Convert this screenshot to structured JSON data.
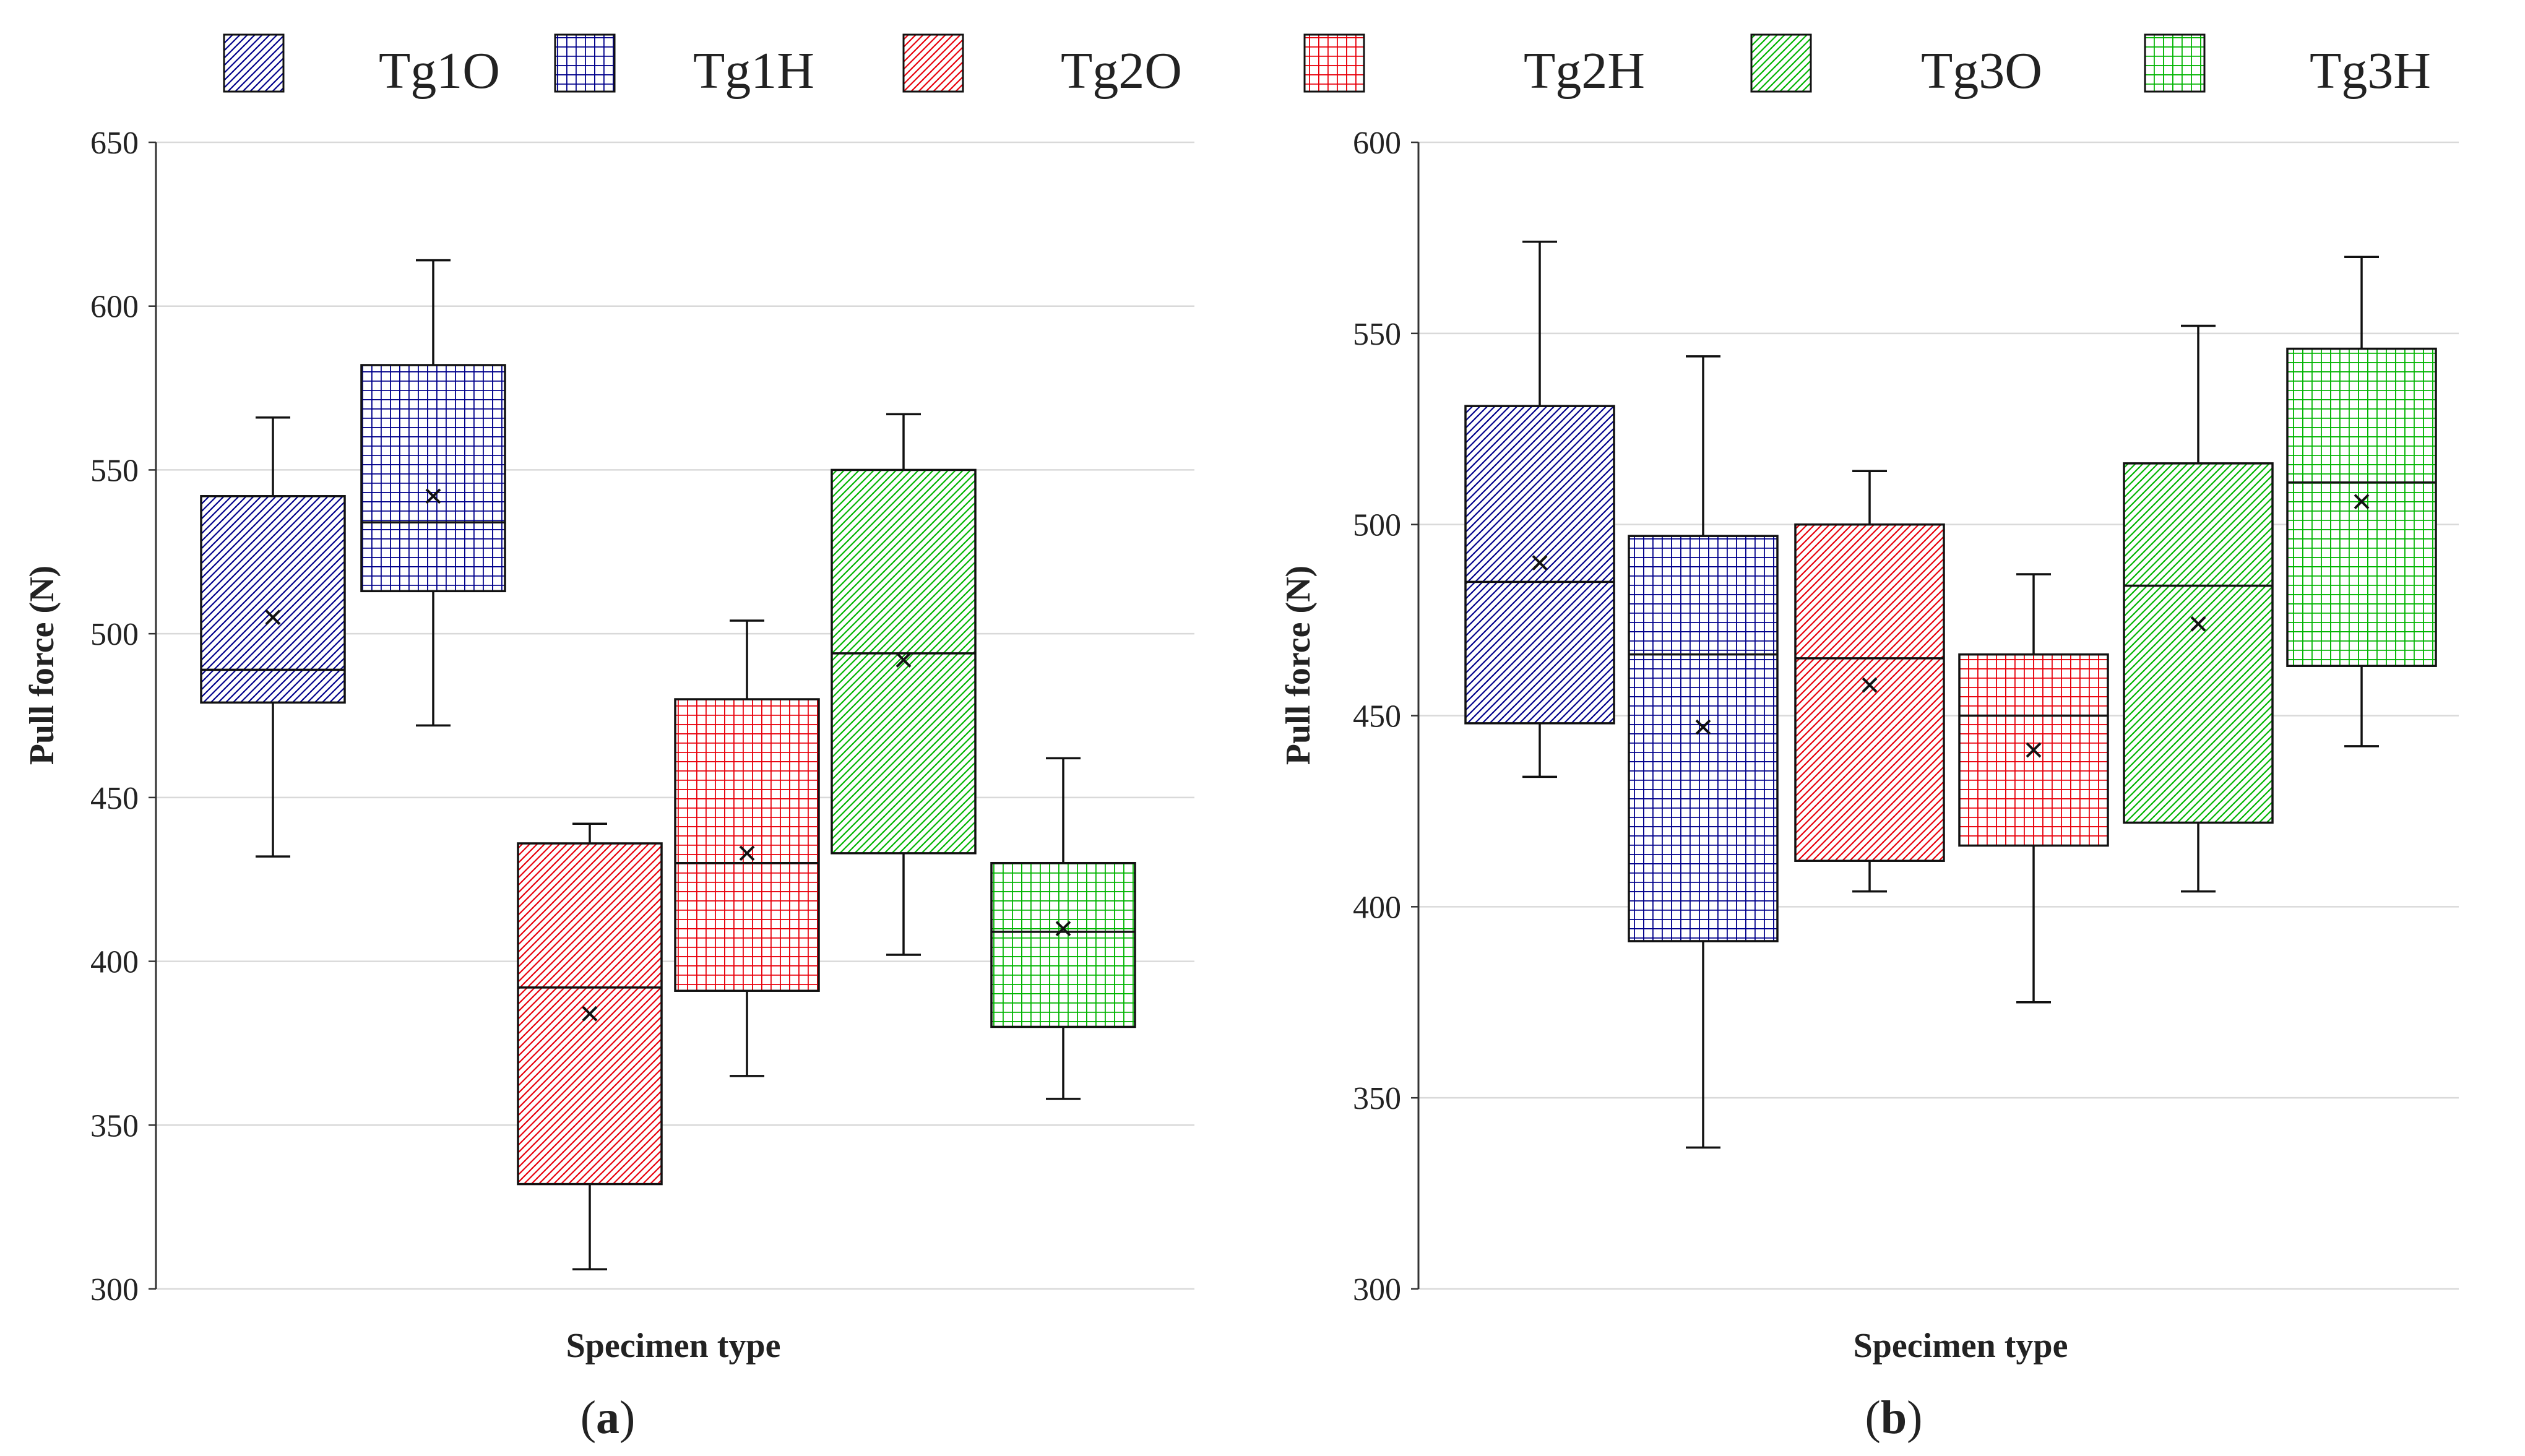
{
  "series_styles": [
    {
      "name": "Tg1O",
      "color": "#00008b",
      "pattern": "diagonal"
    },
    {
      "name": "Tg1H",
      "color": "#00008b",
      "pattern": "grid"
    },
    {
      "name": "Tg2O",
      "color": "#e8000b",
      "pattern": "diagonal"
    },
    {
      "name": "Tg2H",
      "color": "#e8000b",
      "pattern": "grid"
    },
    {
      "name": "Tg3O",
      "color": "#00b400",
      "pattern": "diagonal"
    },
    {
      "name": "Tg3H",
      "color": "#00b400",
      "pattern": "grid"
    }
  ],
  "legend": {
    "entries": [
      "Tg1O",
      "Tg1H",
      "Tg2O",
      "Tg2H",
      "Tg3O",
      "Tg3H"
    ],
    "placement": "top"
  },
  "chart_data": [
    {
      "type": "box",
      "panel_label": {
        "open": "(",
        "letter": "a",
        "close": ")"
      },
      "xlabel": "Specimen type",
      "ylabel": "Pull force (N)",
      "ylim": [
        300,
        650
      ],
      "yticks": [
        300,
        350,
        400,
        450,
        500,
        550,
        600,
        650
      ],
      "grid": true,
      "series": [
        {
          "name": "Tg1O",
          "min": 432,
          "q1": 479,
          "median": 489,
          "mean": 505,
          "q3": 542,
          "max": 566
        },
        {
          "name": "Tg1H",
          "min": 472,
          "q1": 513,
          "median": 534,
          "mean": 542,
          "q3": 582,
          "max": 614
        },
        {
          "name": "Tg2O",
          "min": 306,
          "q1": 332,
          "median": 392,
          "mean": 384,
          "q3": 436,
          "max": 442
        },
        {
          "name": "Tg2H",
          "min": 365,
          "q1": 391,
          "median": 430,
          "mean": 433,
          "q3": 480,
          "max": 504
        },
        {
          "name": "Tg3O",
          "min": 402,
          "q1": 433,
          "median": 494,
          "mean": 492,
          "q3": 550,
          "max": 567
        },
        {
          "name": "Tg3H",
          "min": 358,
          "q1": 380,
          "median": 409,
          "mean": 410,
          "q3": 430,
          "max": 462
        }
      ]
    },
    {
      "type": "box",
      "panel_label": {
        "open": "(",
        "letter": "b",
        "close": ")"
      },
      "xlabel": "Specimen type",
      "ylabel": "Pull force (N)",
      "ylim": [
        300,
        600
      ],
      "yticks": [
        300,
        350,
        400,
        450,
        500,
        550,
        600
      ],
      "grid": true,
      "series": [
        {
          "name": "Tg1O",
          "min": 434,
          "q1": 448,
          "median": 485,
          "mean": 490,
          "q3": 531,
          "max": 574
        },
        {
          "name": "Tg1H",
          "min": 337,
          "q1": 391,
          "median": 466,
          "mean": 447,
          "q3": 497,
          "max": 544
        },
        {
          "name": "Tg2O",
          "min": 404,
          "q1": 412,
          "median": 465,
          "mean": 458,
          "q3": 500,
          "max": 514
        },
        {
          "name": "Tg2H",
          "min": 375,
          "q1": 416,
          "median": 450,
          "mean": 441,
          "q3": 466,
          "max": 487
        },
        {
          "name": "Tg3O",
          "min": 404,
          "q1": 422,
          "median": 484,
          "mean": 474,
          "q3": 516,
          "max": 552
        },
        {
          "name": "Tg3H",
          "min": 442,
          "q1": 463,
          "median": 511,
          "mean": 506,
          "q3": 546,
          "max": 570
        }
      ]
    }
  ]
}
